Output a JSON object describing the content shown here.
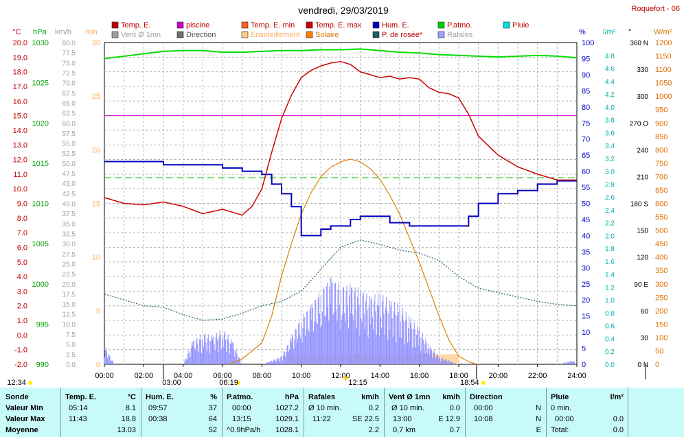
{
  "header": {
    "title": "vendredi, 29/03/2019",
    "location": "Roquefort - 06"
  },
  "legend": [
    {
      "label": "Temp. E.",
      "color": "#c00000"
    },
    {
      "label": "piscine",
      "color": "#cc00cc"
    },
    {
      "label": "Temp. E. min",
      "color": "#ff6020"
    },
    {
      "label": "Temp. E. max",
      "color": "#cc0000"
    },
    {
      "label": "Hum. E.",
      "color": "#0000c0"
    },
    {
      "label": "P.atmo.",
      "color": "#00d000"
    },
    {
      "label": "Pluie",
      "color": "#00e0e0"
    },
    {
      "label": "Vent Ø 1mn",
      "color": "#a0a0a0"
    },
    {
      "label": "Direction",
      "color": "#707070"
    },
    {
      "label": "Ensoleillement",
      "color": "#ffcc88"
    },
    {
      "label": "Solaire",
      "color": "#ff8000"
    },
    {
      "label": "P. de rosée*",
      "color": "#206060"
    },
    {
      "label": "Rafales",
      "color": "#a0a0ff"
    }
  ],
  "axes": {
    "temp_unit": "°C",
    "hpa_unit": "hPa",
    "kmh_unit": "km/h",
    "min_unit": "min",
    "pct_unit": "%",
    "rain_unit": "l/m²",
    "deg_unit": "°",
    "wm2_unit": "W/m²",
    "temp_ticks": [
      "20.0",
      "19.0",
      "18.0",
      "17.0",
      "16.0",
      "15.0",
      "14.0",
      "13.0",
      "12.0",
      "11.0",
      "10.0",
      "9.0",
      "8.0",
      "7.0",
      "6.0",
      "5.0",
      "4.0",
      "3.0",
      "2.0",
      "1.0",
      "0.0",
      "-1.0",
      "-2.0"
    ],
    "hpa_ticks": [
      "1030",
      "1025",
      "1020",
      "1015",
      "1010",
      "1005",
      "1000",
      "995",
      "990"
    ],
    "kmh_ticks": [
      "80.0",
      "77.5",
      "75.0",
      "72.5",
      "70.0",
      "67.5",
      "65.0",
      "62.5",
      "60.0",
      "57.5",
      "55.0",
      "52.5",
      "50.0",
      "47.5",
      "45.0",
      "42.5",
      "40.0",
      "37.5",
      "35.0",
      "32.5",
      "30.0",
      "27.5",
      "25.0",
      "22.5",
      "20.0",
      "17.5",
      "15.0",
      "12.5",
      "10.0",
      "7.5",
      "5.0",
      "2.5",
      "0.0"
    ],
    "min_ticks": [
      "30",
      "25",
      "20",
      "15",
      "10",
      "5",
      "0"
    ],
    "pct_ticks": [
      "100",
      "95",
      "90",
      "85",
      "80",
      "75",
      "70",
      "65",
      "60",
      "55",
      "50",
      "45",
      "40",
      "35",
      "30",
      "25",
      "20",
      "15",
      "10",
      "5",
      "0"
    ],
    "rain_ticks": [
      "4.8",
      "4.6",
      "4.4",
      "4.2",
      "4.0",
      "3.8",
      "3.6",
      "3.4",
      "3.2",
      "3.0",
      "2.8",
      "2.6",
      "2.4",
      "2.2",
      "2.0",
      "1.8",
      "1.6",
      "1.4",
      "1.2",
      "1.0",
      "0.8",
      "0.6",
      "0.4",
      "0.2",
      "0.0"
    ],
    "deg_ticks": [
      "360 N",
      "330",
      "300",
      "270 O",
      "240",
      "210",
      "180 S",
      "150",
      "120",
      "90 E",
      "60",
      "30",
      "0 N"
    ],
    "wm2_ticks": [
      "1200",
      "1150",
      "1100",
      "1050",
      "1000",
      "950",
      "900",
      "850",
      "800",
      "750",
      "700",
      "650",
      "600",
      "550",
      "500",
      "450",
      "400",
      "350",
      "300",
      "250",
      "200",
      "150",
      "100",
      "50",
      "0"
    ],
    "time_ticks": [
      "00:00",
      "02:00",
      "04:00",
      "06:00",
      "08:00",
      "10:00",
      "12:00",
      "14:00",
      "16:00",
      "18:00",
      "20:00",
      "22:00",
      "24:00"
    ]
  },
  "markers": {
    "moonrise": "03:00",
    "sunrise": "06:19",
    "solar_noon": "12:15",
    "sunset": "18:54",
    "moonset": "12:34"
  },
  "chart_data": {
    "type": "line",
    "title": "vendredi, 29/03/2019",
    "x_unit": "hours",
    "xlim": [
      0,
      24
    ],
    "series": [
      {
        "name": "Temp. E.",
        "unit": "°C",
        "ylim": [
          -2,
          20
        ],
        "x": [
          0,
          1,
          2,
          3,
          4,
          5,
          6,
          6.5,
          7,
          7.5,
          8,
          8.5,
          9,
          9.5,
          10,
          10.5,
          11,
          11.5,
          12,
          12.5,
          13,
          13.5,
          14,
          14.5,
          15,
          15.5,
          16,
          16.5,
          17,
          17.5,
          18,
          18.5,
          19,
          20,
          21,
          22,
          23,
          24
        ],
        "y": [
          9.4,
          9.0,
          8.9,
          9.1,
          8.8,
          8.3,
          8.6,
          8.4,
          8.2,
          8.8,
          10.0,
          12.5,
          14.8,
          16.4,
          17.6,
          18.1,
          18.4,
          18.6,
          18.7,
          18.5,
          18.0,
          17.8,
          17.6,
          17.7,
          17.5,
          17.6,
          17.5,
          16.9,
          16.6,
          16.5,
          16.2,
          15.1,
          13.6,
          12.3,
          11.5,
          11.0,
          10.6,
          10.6
        ]
      },
      {
        "name": "piscine",
        "unit": "°C",
        "y_constant": 15.0
      },
      {
        "name": "Hum. E.",
        "unit": "%",
        "ylim": [
          0,
          100
        ],
        "x": [
          0,
          1,
          2,
          3,
          4,
          5,
          6,
          6.5,
          7,
          7.5,
          8,
          8.5,
          9,
          9.5,
          10,
          10.5,
          11,
          11.5,
          12,
          12.5,
          13,
          13.5,
          14,
          14.5,
          15,
          15.5,
          16,
          16.5,
          17,
          17.5,
          18,
          18.5,
          19,
          20,
          21,
          22,
          23,
          24
        ],
        "y": [
          63,
          63,
          63,
          62,
          62,
          62,
          61,
          61,
          60,
          60,
          59,
          56,
          53,
          49,
          40,
          40,
          42,
          43,
          43,
          45,
          46,
          46,
          46,
          44,
          44,
          43,
          43,
          43,
          43,
          43,
          43,
          46,
          50,
          53,
          54,
          56,
          57,
          57
        ]
      },
      {
        "name": "P.atmo.",
        "unit": "hPa",
        "ylim": [
          990,
          1030
        ],
        "x": [
          0,
          1,
          2,
          3,
          4,
          5,
          6,
          7,
          8,
          9,
          10,
          11,
          12,
          13,
          14,
          15,
          16,
          17,
          18,
          19,
          20,
          21,
          22,
          23,
          24
        ],
        "y": [
          1028.0,
          1028.3,
          1028.6,
          1028.9,
          1029.0,
          1029.0,
          1028.8,
          1028.8,
          1028.9,
          1029.0,
          1029.0,
          1029.1,
          1029.1,
          1029.2,
          1029.0,
          1028.8,
          1028.7,
          1028.5,
          1028.4,
          1028.3,
          1028.2,
          1028.3,
          1028.4,
          1028.3,
          1028.1
        ]
      },
      {
        "name": "Solaire",
        "unit": "W/m²",
        "ylim": [
          0,
          1200
        ],
        "x": [
          6.3,
          7,
          8,
          8.5,
          9,
          9.5,
          10,
          10.5,
          11,
          11.5,
          12,
          12.5,
          13,
          13.5,
          14,
          14.5,
          15,
          15.5,
          16,
          16.5,
          17,
          17.5,
          18,
          18.5,
          18.9
        ],
        "y": [
          0,
          20,
          80,
          180,
          330,
          450,
          560,
          640,
          700,
          735,
          755,
          765,
          755,
          730,
          690,
          630,
          560,
          470,
          380,
          280,
          180,
          90,
          30,
          10,
          0
        ]
      },
      {
        "name": "P. de rosée*",
        "unit": "°C",
        "ylim": [
          -2,
          20
        ],
        "x": [
          0,
          1,
          2,
          3,
          4,
          5,
          6,
          7,
          8,
          9,
          10,
          11,
          12,
          13,
          14,
          15,
          16,
          17,
          18,
          19,
          20,
          21,
          22,
          23,
          24
        ],
        "y": [
          2.8,
          2.4,
          2.0,
          1.9,
          1.4,
          1.0,
          1.1,
          1.5,
          2.0,
          2.3,
          3.0,
          4.5,
          6.0,
          6.5,
          6.2,
          5.8,
          5.6,
          5.1,
          4.0,
          3.2,
          2.9,
          2.6,
          2.3,
          2.1,
          2.0
        ]
      },
      {
        "name": "Rafales",
        "unit": "km/h",
        "ylim": [
          0,
          80
        ],
        "x": [
          0,
          0.5,
          1,
          2,
          3,
          4,
          4.5,
          5,
          5.5,
          6,
          6.5,
          7,
          8,
          9,
          9.5,
          10,
          10.5,
          11,
          11.5,
          12,
          12.5,
          13,
          13.5,
          14,
          14.5,
          15,
          15.5,
          16,
          16.5,
          17,
          18,
          19,
          20,
          21,
          22,
          23,
          23.8,
          24
        ],
        "y": [
          5,
          0,
          0,
          0,
          0,
          0,
          6,
          8,
          7,
          9,
          6,
          0,
          0,
          2,
          7,
          12,
          15,
          19,
          22,
          20,
          20,
          19,
          17,
          18,
          16,
          15,
          12,
          9,
          5,
          2,
          0,
          0,
          0,
          0,
          0,
          0,
          1,
          0
        ]
      }
    ]
  },
  "stats": {
    "headers": {
      "sonde": "Sonde",
      "temp": "Temp. E.",
      "temp_unit": "°C",
      "hum": "Hum. E.",
      "hum_unit": "%",
      "patmo": "P.atmo.",
      "patmo_unit": "hPa",
      "rafales": "Rafales",
      "rafales_unit": "km/h",
      "vent": "Vent Ø 1mn",
      "vent_unit": "km/h",
      "direction": "Direction",
      "pluie": "Pluie",
      "pluie_unit": "l/m²"
    },
    "rows": [
      {
        "label": "Valeur Min",
        "temp_time": "05:14",
        "temp_val": "8.1",
        "hum_time": "09:57",
        "hum_val": "37",
        "patmo_time": "00:00",
        "patmo_val": "1027.2",
        "raf_time": "Ø 10 min.",
        "raf_val": "0.2",
        "vent_time": "Ø 10 min.",
        "vent_val": "0.0",
        "dir_time": "00:00",
        "dir_val": "N",
        "pluie_time": "0 min.",
        "pluie_val": ""
      },
      {
        "label": "Valeur Max",
        "temp_time": "11:43",
        "temp_val": "18.8",
        "hum_time": "00:38",
        "hum_val": "64",
        "patmo_time": "13:15",
        "patmo_val": "1029.1",
        "raf_time": "11:22",
        "raf_val": "SE 22.5",
        "vent_time": "13:00",
        "vent_val": "E 12.9",
        "dir_time": "10:08",
        "dir_val": "N",
        "pluie_time": "00:00",
        "pluie_val": "0.0"
      },
      {
        "label": "Moyenne",
        "temp_time": "",
        "temp_val": "13.03",
        "hum_time": "",
        "hum_val": "52",
        "patmo_time": "^0.9hPa/h",
        "patmo_val": "1028.1",
        "raf_time": "",
        "raf_val": "2.2",
        "vent_time": "0,7 km",
        "vent_val": "0.7",
        "dir_time": "",
        "dir_val": "E",
        "pluie_time": "Total:",
        "pluie_val": "0.0"
      }
    ]
  }
}
